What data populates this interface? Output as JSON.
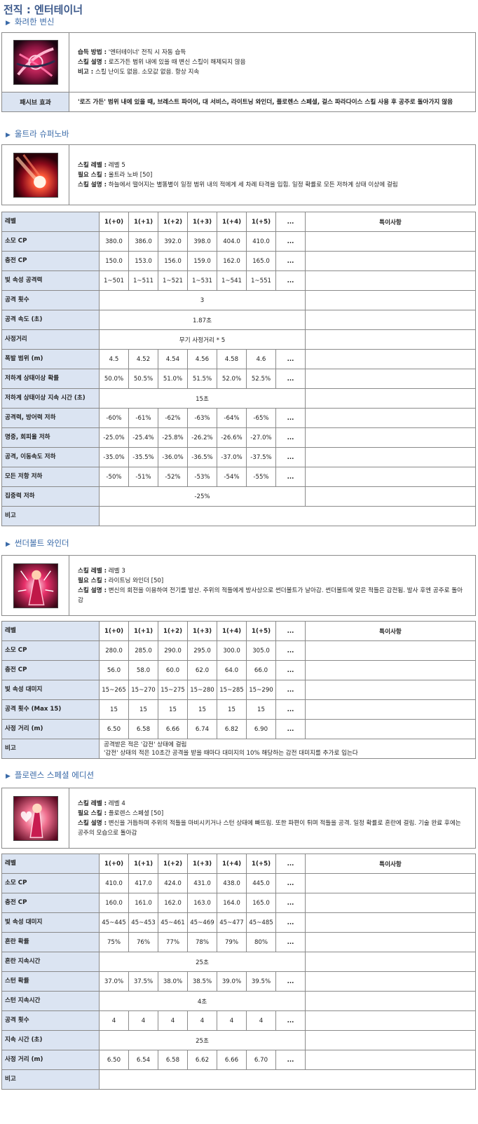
{
  "title": "전직 : 엔터테이너",
  "hwaryeo": {
    "heading": "화려한 변신",
    "desc": [
      {
        "label": "습득 방법 :",
        "text": " '엔터테이너' 전직 시 자동 습득"
      },
      {
        "label": "스킬 설명 :",
        "text": " 로즈가든 범위 내에 있을 때 변신 스킬이 해제되지 않음"
      },
      {
        "label": "비고 :",
        "text": " 스킬 난이도 없음. 소모값 없음. 항상 지속"
      }
    ],
    "passive_label": "패시브 효과",
    "passive_text": "'로즈 가든' 범위 내에 있을 때, 브레스트 파이어, 대 서비스, 라이트닝 와인더, 플로렌스 스페셜, 걸스 파라다이스 스킬 사용 후 공주로 돌아가지 않음"
  },
  "supernova": {
    "heading": "울트라 슈퍼노바",
    "desc": [
      {
        "label": "스킬 레벨 :",
        "text": " 레벨 5"
      },
      {
        "label": "필요 스킬 :",
        "text": " 울트라 노바 [50]"
      },
      {
        "label": "스킬 설명 :",
        "text": " 하늘에서 떨어지는 별똥별이 일정 범위 내의 적에게 세 차례 타격을 입힘. 일정 확률로 모든 저하계 상태 이상에 걸림"
      }
    ],
    "table": {
      "headers": [
        "레벨",
        "1(+0)",
        "1(+1)",
        "1(+2)",
        "1(+3)",
        "1(+4)",
        "1(+5)",
        "...",
        "특이사항"
      ],
      "rows": [
        {
          "label": "소모 CP",
          "values": [
            "380.0",
            "386.0",
            "392.0",
            "398.0",
            "404.0",
            "410.0",
            "..."
          ]
        },
        {
          "label": "충전 CP",
          "values": [
            "150.0",
            "153.0",
            "156.0",
            "159.0",
            "162.0",
            "165.0",
            "..."
          ]
        },
        {
          "label": "빛 속성 공격력",
          "values": [
            "1~501",
            "1~511",
            "1~521",
            "1~531",
            "1~541",
            "1~551",
            "..."
          ]
        },
        {
          "label": "공격 횟수",
          "span": "3"
        },
        {
          "label": "공격 속도 (초)",
          "span": "1.87초"
        },
        {
          "label": "사정거리",
          "span": "무기 사정거리 * 5"
        },
        {
          "label": "폭발 범위 (m)",
          "values": [
            "4.5",
            "4.52",
            "4.54",
            "4.56",
            "4.58",
            "4.6",
            "..."
          ]
        },
        {
          "label": "저하계 상태이상 확률",
          "values": [
            "50.0%",
            "50.5%",
            "51.0%",
            "51.5%",
            "52.0%",
            "52.5%",
            "..."
          ]
        },
        {
          "label": "저하계 상태이상 지속 시간 (초)",
          "span": "15초"
        },
        {
          "label": "공격력, 방어력 저하",
          "values": [
            "-60%",
            "-61%",
            "-62%",
            "-63%",
            "-64%",
            "-65%",
            "..."
          ]
        },
        {
          "label": "명중, 회피율 저하",
          "values": [
            "-25.0%",
            "-25.4%",
            "-25.8%",
            "-26.2%",
            "-26.6%",
            "-27.0%",
            "..."
          ]
        },
        {
          "label": "공격, 이동속도 저하",
          "values": [
            "-35.0%",
            "-35.5%",
            "-36.0%",
            "-36.5%",
            "-37.0%",
            "-37.5%",
            "..."
          ]
        },
        {
          "label": "모든 저항 저하",
          "values": [
            "-50%",
            "-51%",
            "-52%",
            "-53%",
            "-54%",
            "-55%",
            "..."
          ]
        },
        {
          "label": "집중력 저하",
          "span": "-25%"
        },
        {
          "label": "비고",
          "note": ""
        }
      ]
    }
  },
  "thunder": {
    "heading": "썬더볼트 와인더",
    "desc": [
      {
        "label": "스킬 레벨 :",
        "text": " 레벨 3"
      },
      {
        "label": "필요 스킬 :",
        "text": " 라이트닝 와인더 [50]"
      },
      {
        "label": "스킬 설명 :",
        "text": " 변신의 회전을 이용하여 전기를 발산. 주위의 적들에게 방사상으로 썬더볼트가 날아감. 썬더볼트에 맞은 적들은 감전됨. 발사 후엔 공주로 돌아감"
      }
    ],
    "table": {
      "headers": [
        "레벨",
        "1(+0)",
        "1(+1)",
        "1(+2)",
        "1(+3)",
        "1(+4)",
        "1(+5)",
        "...",
        "특이사항"
      ],
      "rows": [
        {
          "label": "소모 CP",
          "values": [
            "280.0",
            "285.0",
            "290.0",
            "295.0",
            "300.0",
            "305.0",
            "..."
          ]
        },
        {
          "label": "충전 CP",
          "values": [
            "56.0",
            "58.0",
            "60.0",
            "62.0",
            "64.0",
            "66.0",
            "..."
          ]
        },
        {
          "label": "빛 속성 대미지",
          "values": [
            "15~265",
            "15~270",
            "15~275",
            "15~280",
            "15~285",
            "15~290",
            "..."
          ]
        },
        {
          "label": "공격 횟수 (Max 15)",
          "values": [
            "15",
            "15",
            "15",
            "15",
            "15",
            "15",
            "..."
          ]
        },
        {
          "label": "사정 거리 (m)",
          "values": [
            "6.50",
            "6.58",
            "6.66",
            "6.74",
            "6.82",
            "6.90",
            "..."
          ]
        },
        {
          "label": "비고",
          "note": "공격받은 적은 '감전' 상태에 걸림\n'감전' 상태의 적은 10초간 공격을 받을 때마다 대미지의 10% 해당하는 감전 대미지를 추가로 입는다"
        }
      ]
    }
  },
  "florence": {
    "heading": "플로렌스 스페셜 에디션",
    "desc": [
      {
        "label": "스킬 레벨 :",
        "text": " 레벨 4"
      },
      {
        "label": "필요 스킬 :",
        "text": " 플로렌스 스페셜 [50]"
      },
      {
        "label": "스킬 설명 :",
        "text": " 변신을 거듭하며 주위의 적들을 마비시키거나 스턴 상태에 빠뜨림. 또한 파편이 튀며 적들을 공격. 일정 확률로 혼란에 걸림. 기술 완료 후에는 공주의 모습으로 돌아감"
      }
    ],
    "table": {
      "headers": [
        "레벨",
        "1(+0)",
        "1(+1)",
        "1(+2)",
        "1(+3)",
        "1(+4)",
        "1(+5)",
        "...",
        "특이사항"
      ],
      "rows": [
        {
          "label": "소모 CP",
          "values": [
            "410.0",
            "417.0",
            "424.0",
            "431.0",
            "438.0",
            "445.0",
            "..."
          ]
        },
        {
          "label": "충전 CP",
          "values": [
            "160.0",
            "161.0",
            "162.0",
            "163.0",
            "164.0",
            "165.0",
            "..."
          ]
        },
        {
          "label": "빛 속성 대미지",
          "values": [
            "45~445",
            "45~453",
            "45~461",
            "45~469",
            "45~477",
            "45~485",
            "..."
          ]
        },
        {
          "label": "혼란 확률",
          "values": [
            "75%",
            "76%",
            "77%",
            "78%",
            "79%",
            "80%",
            "..."
          ]
        },
        {
          "label": "혼란 지속시간",
          "span": "25초"
        },
        {
          "label": "스턴 확률",
          "values": [
            "37.0%",
            "37.5%",
            "38.0%",
            "38.5%",
            "39.0%",
            "39.5%",
            "..."
          ]
        },
        {
          "label": "스턴 지속시간",
          "span": "4초"
        },
        {
          "label": "공격 횟수",
          "values": [
            "4",
            "4",
            "4",
            "4",
            "4",
            "4",
            "..."
          ]
        },
        {
          "label": "지속 시간 (초)",
          "span": "25초"
        },
        {
          "label": "사정 거리 (m)",
          "values": [
            "6.50",
            "6.54",
            "6.58",
            "6.62",
            "6.66",
            "6.70",
            "..."
          ]
        },
        {
          "label": "비고",
          "note": ""
        }
      ]
    }
  }
}
